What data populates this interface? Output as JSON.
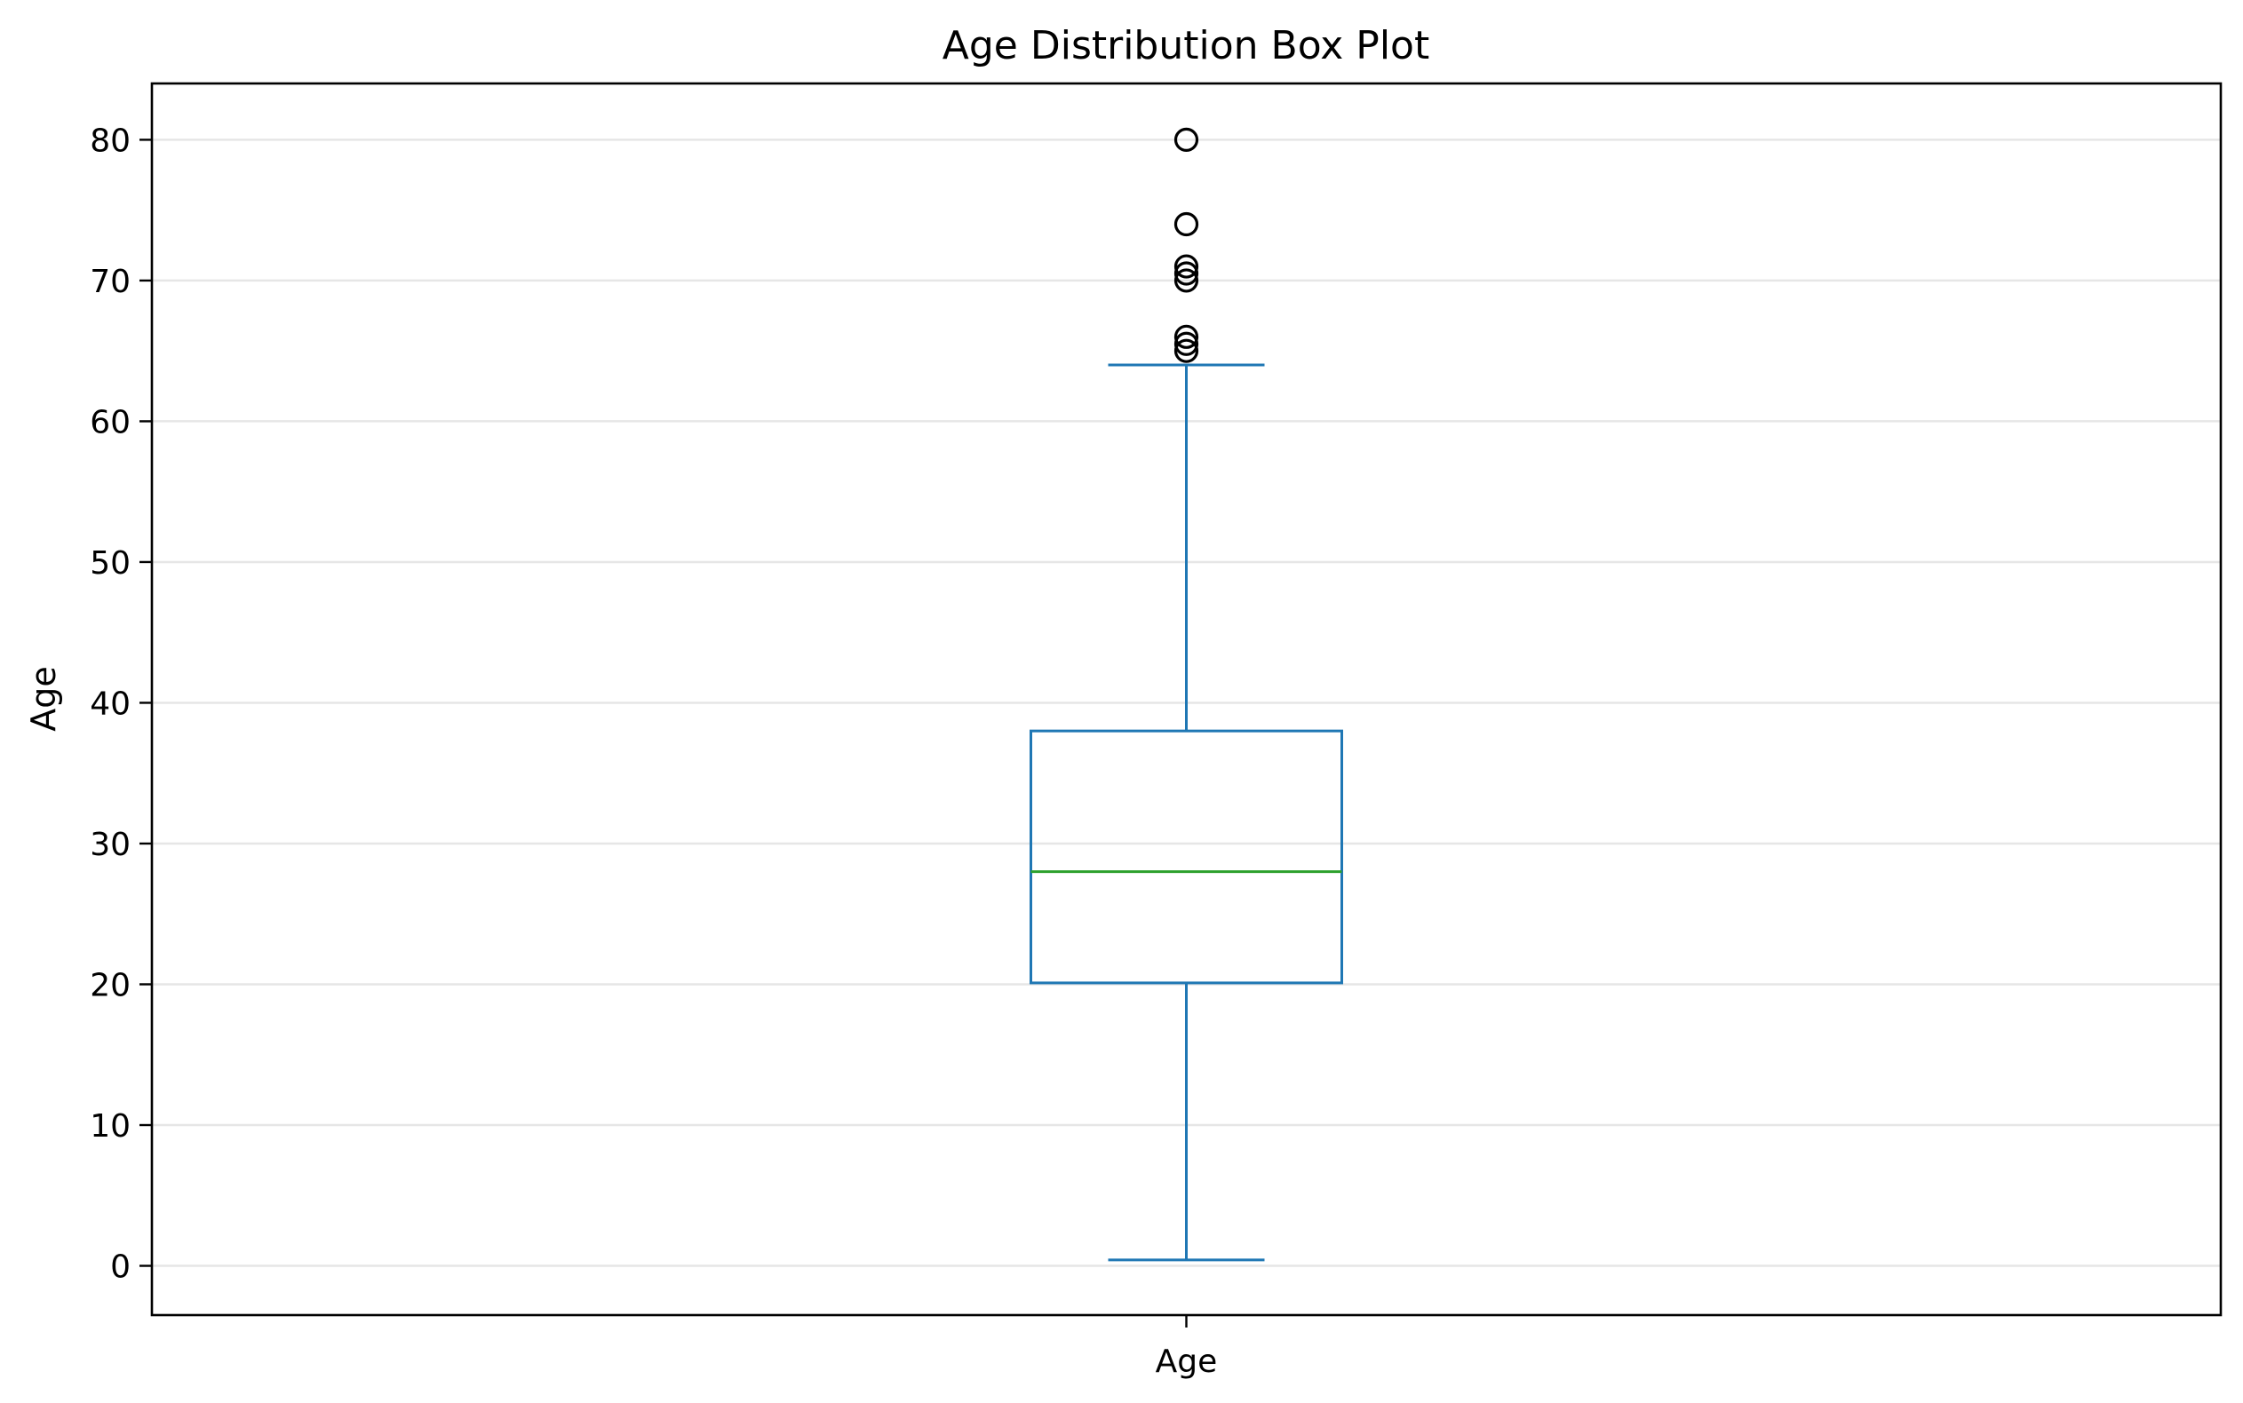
{
  "chart_data": {
    "type": "box",
    "title": "Age Distribution Box Plot",
    "xlabel": "",
    "ylabel": "Age",
    "categories": [
      "Age"
    ],
    "ylim": [
      -3.5,
      84
    ],
    "yticks": [
      0,
      10,
      20,
      30,
      40,
      50,
      60,
      70,
      80
    ],
    "grid": "horizontal",
    "boxes": [
      {
        "category": "Age",
        "whisker_low": 0.42,
        "q1": 20.1,
        "median": 28,
        "q3": 38,
        "whisker_high": 64,
        "outliers": [
          65,
          65.5,
          66,
          70,
          70.5,
          71,
          74,
          80
        ]
      }
    ],
    "colors": {
      "box": "#1f77b4",
      "median": "#2ca02c",
      "outlier": "#000000",
      "grid": "#e6e6e6"
    }
  }
}
